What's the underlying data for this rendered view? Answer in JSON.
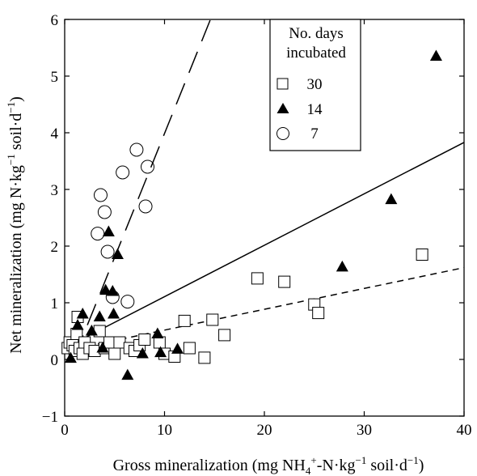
{
  "chart_data": {
    "type": "scatter",
    "xlabel": "Gross mineralization (mg NH4+-N·kg−1 soil·d−1)",
    "xlabel_parts": {
      "pre": "Gross mineralization (mg NH",
      "sub": "4",
      "sup": "+",
      "mid": "-N·kg",
      "sup2": "−1",
      "post": " soil·d",
      "sup3": "−1",
      "end": ")"
    },
    "ylabel": "Net mineralization (mg N·kg−1 soil·d−1)",
    "ylabel_parts": {
      "pre": "Net mineralization (mg N·kg",
      "sup": "−1",
      "mid": " soil·d",
      "sup2": "−1",
      "end": ")"
    },
    "xlim": [
      0,
      40
    ],
    "ylim": [
      -1,
      6
    ],
    "xticks": [
      0,
      10,
      20,
      30,
      40
    ],
    "yticks": [
      -1,
      0,
      1,
      2,
      3,
      4,
      5,
      6
    ],
    "xtick_labels": [
      "0",
      "10",
      "20",
      "30",
      "40"
    ],
    "ytick_labels": [
      "−1",
      "0",
      "1",
      "2",
      "3",
      "4",
      "5",
      "6"
    ],
    "grid": false,
    "legend": {
      "title_line1": "No. days",
      "title_line2": "incubated",
      "placement": "top-center",
      "entries": [
        "30",
        "14",
        "7"
      ]
    },
    "series": [
      {
        "name": "30",
        "marker": "open-square",
        "points": [
          [
            0.3,
            0.2
          ],
          [
            0.5,
            0.3
          ],
          [
            0.8,
            0.25
          ],
          [
            1.0,
            0.15
          ],
          [
            1.2,
            0.45
          ],
          [
            1.3,
            0.75
          ],
          [
            1.5,
            0.2
          ],
          [
            1.8,
            0.1
          ],
          [
            2.0,
            0.3
          ],
          [
            2.5,
            0.2
          ],
          [
            3.0,
            0.15
          ],
          [
            3.5,
            0.5
          ],
          [
            4.0,
            0.2
          ],
          [
            4.5,
            0.3
          ],
          [
            5.0,
            0.1
          ],
          [
            5.5,
            0.3
          ],
          [
            6.5,
            0.2
          ],
          [
            7.0,
            0.15
          ],
          [
            7.5,
            0.25
          ],
          [
            8.0,
            0.35
          ],
          [
            9.5,
            0.3
          ],
          [
            10.0,
            0.1
          ],
          [
            11.0,
            0.05
          ],
          [
            12.0,
            0.68
          ],
          [
            12.5,
            0.2
          ],
          [
            14.0,
            0.03
          ],
          [
            14.8,
            0.7
          ],
          [
            16.0,
            0.43
          ],
          [
            19.3,
            1.43
          ],
          [
            22.0,
            1.37
          ],
          [
            25.0,
            0.97
          ],
          [
            25.4,
            0.82
          ],
          [
            35.8,
            1.85
          ]
        ]
      },
      {
        "name": "14",
        "marker": "filled-triangle",
        "points": [
          [
            0.6,
            0.02
          ],
          [
            1.3,
            0.6
          ],
          [
            1.8,
            0.8
          ],
          [
            2.7,
            0.5
          ],
          [
            3.5,
            0.75
          ],
          [
            3.8,
            0.2
          ],
          [
            4.1,
            1.22
          ],
          [
            4.4,
            2.25
          ],
          [
            4.8,
            1.2
          ],
          [
            4.9,
            0.8
          ],
          [
            5.3,
            1.85
          ],
          [
            6.3,
            -0.28
          ],
          [
            7.8,
            0.1
          ],
          [
            9.3,
            0.45
          ],
          [
            9.6,
            0.12
          ],
          [
            11.3,
            0.18
          ],
          [
            27.8,
            1.63
          ],
          [
            32.7,
            2.82
          ],
          [
            37.2,
            5.35
          ]
        ]
      },
      {
        "name": "7",
        "marker": "open-circle",
        "points": [
          [
            3.3,
            2.22
          ],
          [
            3.6,
            2.9
          ],
          [
            4.0,
            2.6
          ],
          [
            4.3,
            1.9
          ],
          [
            4.8,
            1.1
          ],
          [
            5.8,
            3.3
          ],
          [
            6.3,
            1.02
          ],
          [
            7.2,
            3.7
          ],
          [
            8.1,
            2.7
          ],
          [
            8.3,
            3.4
          ]
        ]
      }
    ],
    "fit_lines": [
      {
        "series": "7",
        "style": "long-dash",
        "x": [
          1.0,
          14.6
        ],
        "y": [
          0.05,
          6.0
        ]
      },
      {
        "series": "14",
        "style": "solid",
        "x": [
          0.0,
          40.0
        ],
        "y": [
          0.2,
          3.83
        ]
      },
      {
        "series": "30",
        "style": "short-dash",
        "x": [
          0.0,
          40.0
        ],
        "y": [
          0.15,
          1.62
        ]
      }
    ]
  }
}
